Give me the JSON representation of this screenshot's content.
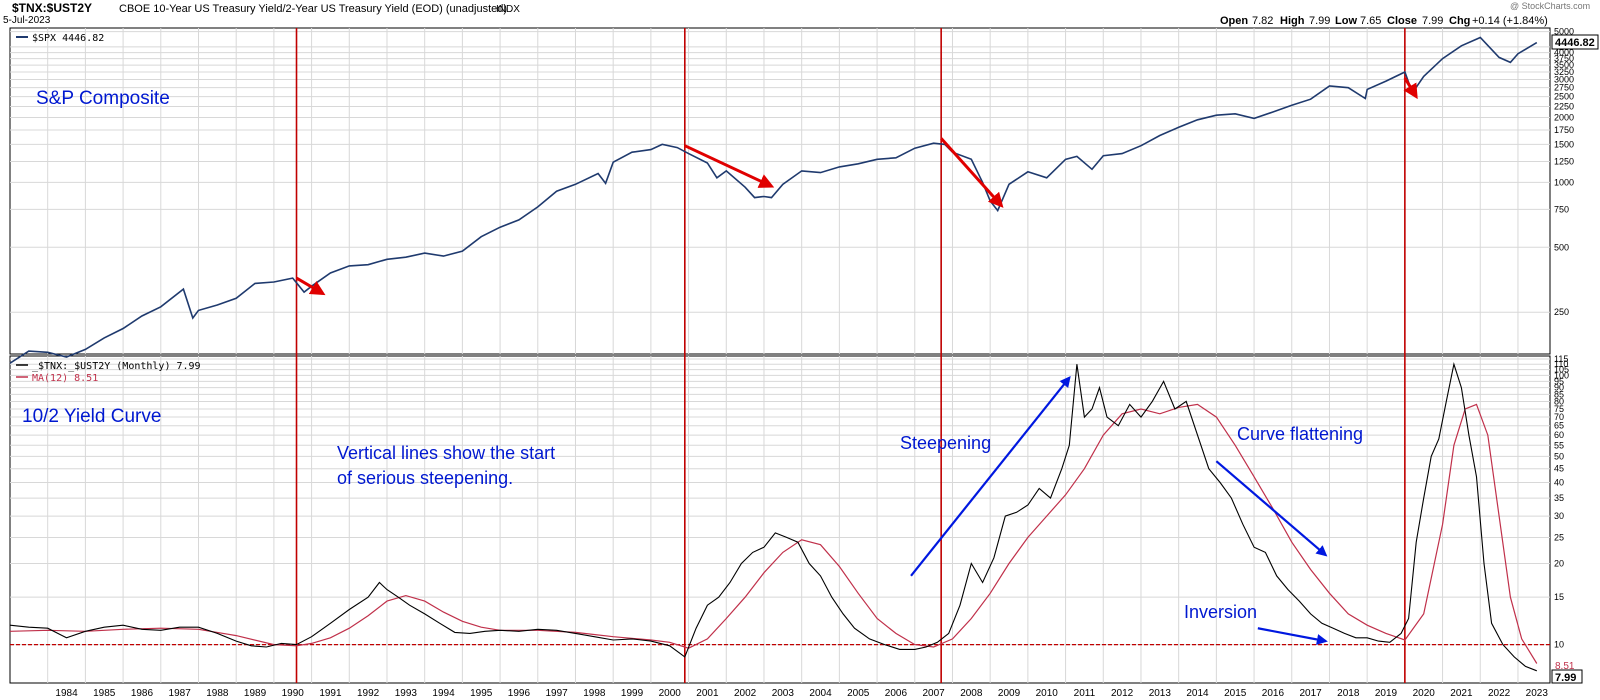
{
  "header": {
    "symbol": "$TNX:$UST2Y",
    "description": "CBOE 10-Year US Treasury Yield/2-Year US Treasury Yield (EOD) (unadjusted)",
    "exchange": "INDX",
    "date": "5-Jul-2023",
    "watermark": "@ StockCharts.com",
    "open_label": "Open",
    "open": "7.82",
    "high_label": "High",
    "high": "7.99",
    "low_label": "Low",
    "low": "7.65",
    "close_label": "Close",
    "close": "7.99",
    "chg_label": "Chg",
    "chg": "+0.14 (+1.84%)"
  },
  "colors": {
    "spx_line": "#1f3a6e",
    "ratio_line": "#000000",
    "ma_line": "#c0304a",
    "vertical_lines": "#c00000",
    "red_arrows": "#e00000",
    "blue_arrows": "#0018e0",
    "annotation_text": "#0018d0",
    "grid": "#d8d8d8"
  },
  "chart_data": [
    {
      "type": "line",
      "panel": "top",
      "legend": "$SPX 4446.82",
      "last_value_label": "4446.82",
      "yscale": "log",
      "ylim": [
        160,
        5200
      ],
      "yticks": [
        250,
        500,
        750,
        1000,
        1250,
        1500,
        1750,
        2000,
        2250,
        2500,
        2750,
        3000,
        3250,
        3500,
        3750,
        4000,
        4250,
        5000
      ],
      "series": [
        {
          "name": "$SPX",
          "x": [
            1983.0,
            1983.5,
            1984.0,
            1984.5,
            1985.0,
            1985.5,
            1986.0,
            1986.5,
            1987.0,
            1987.6,
            1987.85,
            1988.0,
            1988.5,
            1989.0,
            1989.5,
            1990.0,
            1990.5,
            1990.8,
            1991.0,
            1991.5,
            1992.0,
            1992.5,
            1993.0,
            1993.5,
            1994.0,
            1994.5,
            1995.0,
            1995.5,
            1996.0,
            1996.5,
            1997.0,
            1997.5,
            1998.0,
            1998.6,
            1998.8,
            1999.0,
            1999.5,
            2000.0,
            2000.3,
            2000.7,
            2001.0,
            2001.5,
            2001.75,
            2002.0,
            2002.5,
            2002.75,
            2003.0,
            2003.2,
            2003.5,
            2004.0,
            2004.5,
            2005.0,
            2005.5,
            2006.0,
            2006.5,
            2007.0,
            2007.5,
            2007.8,
            2008.0,
            2008.5,
            2008.8,
            2009.0,
            2009.2,
            2009.5,
            2010.0,
            2010.5,
            2011.0,
            2011.3,
            2011.7,
            2012.0,
            2012.5,
            2013.0,
            2013.5,
            2014.0,
            2014.5,
            2015.0,
            2015.5,
            2016.0,
            2016.5,
            2017.0,
            2017.5,
            2018.0,
            2018.5,
            2018.95,
            2019.0,
            2019.5,
            2020.0,
            2020.2,
            2020.5,
            2021.0,
            2021.5,
            2022.0,
            2022.5,
            2022.8,
            2023.0,
            2023.5
          ],
          "values": [
            145,
            165,
            163,
            155,
            168,
            190,
            210,
            240,
            265,
            320,
            235,
            255,
            270,
            290,
            340,
            345,
            360,
            310,
            330,
            380,
            410,
            415,
            440,
            450,
            470,
            455,
            480,
            560,
            620,
            670,
            770,
            910,
            980,
            1100,
            990,
            1240,
            1380,
            1420,
            1500,
            1450,
            1360,
            1230,
            1050,
            1130,
            950,
            850,
            860,
            850,
            980,
            1130,
            1110,
            1180,
            1220,
            1280,
            1300,
            1440,
            1520,
            1500,
            1380,
            1280,
            1000,
            820,
            740,
            980,
            1120,
            1050,
            1280,
            1320,
            1150,
            1330,
            1360,
            1480,
            1650,
            1800,
            1950,
            2050,
            2080,
            1980,
            2120,
            2280,
            2430,
            2800,
            2750,
            2450,
            2700,
            2950,
            3250,
            2600,
            3100,
            3750,
            4300,
            4700,
            3800,
            3600,
            3950,
            4450
          ]
        }
      ],
      "annotations": [
        "S&P Composite"
      ]
    },
    {
      "type": "line",
      "panel": "bottom",
      "legend_main": "_$TNX:_$UST2Y (Monthly) 7.99",
      "legend_ma": "MA(12) 8.51",
      "last_value_label": "7.99",
      "ma_value_label": "8.51",
      "yscale": "log",
      "ylim": [
        7.2,
        118
      ],
      "yticks": [
        10,
        15,
        20,
        25,
        30,
        35,
        40,
        45,
        50,
        55,
        60,
        65,
        70,
        75,
        80,
        85,
        90,
        95,
        100,
        105,
        110,
        115
      ],
      "reference_line": 10,
      "xticks": [
        "1984",
        "1985",
        "1986",
        "1987",
        "1988",
        "1989",
        "1990",
        "1991",
        "1992",
        "1993",
        "1994",
        "1995",
        "1996",
        "1997",
        "1998",
        "1999",
        "2000",
        "2001",
        "2002",
        "2003",
        "2004",
        "2005",
        "2006",
        "2007",
        "2008",
        "2009",
        "2010",
        "2011",
        "2012",
        "2013",
        "2014",
        "2015",
        "2016",
        "2017",
        "2018",
        "2019",
        "2020",
        "2021",
        "2022",
        "2023"
      ],
      "vertical_lines": [
        1990.6,
        2000.9,
        2007.7,
        2020.0
      ],
      "series": [
        {
          "name": "_$TNX:_$UST2Y",
          "x": [
            1983.0,
            1983.5,
            1984.0,
            1984.5,
            1985.0,
            1985.5,
            1986.0,
            1986.5,
            1987.0,
            1987.5,
            1988.0,
            1988.5,
            1989.0,
            1989.4,
            1989.8,
            1990.2,
            1990.6,
            1991.0,
            1991.5,
            1992.0,
            1992.5,
            1992.8,
            1993.0,
            1993.3,
            1993.6,
            1994.0,
            1994.4,
            1994.8,
            1995.2,
            1995.6,
            1996.0,
            1996.5,
            1997.0,
            1997.5,
            1998.0,
            1998.5,
            1999.0,
            1999.5,
            2000.0,
            2000.5,
            2000.9,
            2001.2,
            2001.5,
            2001.8,
            2002.1,
            2002.4,
            2002.7,
            2003.0,
            2003.3,
            2003.6,
            2003.9,
            2004.2,
            2004.5,
            2004.8,
            2005.1,
            2005.4,
            2005.8,
            2006.2,
            2006.6,
            2007.0,
            2007.3,
            2007.6,
            2007.9,
            2008.2,
            2008.5,
            2008.8,
            2009.1,
            2009.4,
            2009.7,
            2010.0,
            2010.3,
            2010.6,
            2010.9,
            2011.1,
            2011.3,
            2011.5,
            2011.7,
            2011.9,
            2012.1,
            2012.4,
            2012.7,
            2013.0,
            2013.3,
            2013.6,
            2013.9,
            2014.2,
            2014.5,
            2014.8,
            2015.1,
            2015.4,
            2015.7,
            2016.0,
            2016.3,
            2016.6,
            2016.9,
            2017.2,
            2017.5,
            2017.8,
            2018.1,
            2018.4,
            2018.7,
            2019.0,
            2019.3,
            2019.6,
            2019.9,
            2020.1,
            2020.3,
            2020.5,
            2020.7,
            2020.9,
            2021.1,
            2021.3,
            2021.5,
            2021.7,
            2021.9,
            2022.1,
            2022.3,
            2022.6,
            2022.9,
            2023.2,
            2023.5
          ],
          "values": [
            11.8,
            11.6,
            11.5,
            10.6,
            11.2,
            11.6,
            11.8,
            11.4,
            11.3,
            11.6,
            11.6,
            11.0,
            10.3,
            9.9,
            9.8,
            10.1,
            10.0,
            10.7,
            12.0,
            13.5,
            15.0,
            17.0,
            16.0,
            15.0,
            14.0,
            13.0,
            12.0,
            11.1,
            11.0,
            11.2,
            11.3,
            11.2,
            11.4,
            11.3,
            11.0,
            10.7,
            10.4,
            10.5,
            10.3,
            9.9,
            9.0,
            11.5,
            14.0,
            15.0,
            17.0,
            20.0,
            22.0,
            23.0,
            26.0,
            25.0,
            24.0,
            20.0,
            18.0,
            15.0,
            13.0,
            11.5,
            10.5,
            10.0,
            9.6,
            9.6,
            9.8,
            10.2,
            11.0,
            14.0,
            20.0,
            17.0,
            21.0,
            30.0,
            31.0,
            33.0,
            38.0,
            35.0,
            45.0,
            55.0,
            110.0,
            70.0,
            75.0,
            90.0,
            70.0,
            65.0,
            78.0,
            70.0,
            80.0,
            95.0,
            75.0,
            80.0,
            60.0,
            45.0,
            40.0,
            35.0,
            28.0,
            23.0,
            22.0,
            18.0,
            16.0,
            14.5,
            13.0,
            12.0,
            11.5,
            11.0,
            10.6,
            10.6,
            10.3,
            10.2,
            11.0,
            12.5,
            24.0,
            35.0,
            50.0,
            58.0,
            80.0,
            110.0,
            90.0,
            60.0,
            42.0,
            20.0,
            12.0,
            10.0,
            9.0,
            8.3,
            7.99
          ]
        },
        {
          "name": "MA(12)",
          "x": [
            1983.0,
            1984.0,
            1985.0,
            1986.0,
            1987.0,
            1988.0,
            1989.0,
            1990.0,
            1990.6,
            1991.0,
            1991.5,
            1992.0,
            1992.5,
            1993.0,
            1993.5,
            1994.0,
            1994.5,
            1995.0,
            1995.5,
            1996.0,
            1997.0,
            1998.0,
            1999.0,
            2000.0,
            2000.5,
            2001.0,
            2001.5,
            2002.0,
            2002.5,
            2003.0,
            2003.5,
            2004.0,
            2004.5,
            2005.0,
            2005.5,
            2006.0,
            2006.5,
            2007.0,
            2007.5,
            2008.0,
            2008.5,
            2009.0,
            2009.5,
            2010.0,
            2010.5,
            2011.0,
            2011.5,
            2012.0,
            2012.5,
            2013.0,
            2013.5,
            2014.0,
            2014.5,
            2015.0,
            2015.5,
            2016.0,
            2016.5,
            2017.0,
            2017.5,
            2018.0,
            2018.5,
            2019.0,
            2019.5,
            2020.0,
            2020.5,
            2021.0,
            2021.3,
            2021.6,
            2021.9,
            2022.2,
            2022.5,
            2022.8,
            2023.1,
            2023.5
          ],
          "values": [
            11.2,
            11.3,
            11.2,
            11.4,
            11.5,
            11.4,
            10.8,
            10.0,
            9.9,
            10.1,
            10.6,
            11.5,
            12.8,
            14.5,
            15.2,
            14.5,
            13.2,
            12.2,
            11.6,
            11.3,
            11.3,
            11.1,
            10.7,
            10.4,
            10.2,
            9.7,
            10.5,
            12.5,
            15.0,
            18.5,
            22.0,
            24.5,
            23.5,
            19.5,
            15.5,
            12.5,
            11.0,
            10.0,
            9.8,
            10.5,
            12.5,
            15.5,
            20.0,
            25.0,
            30.0,
            36.0,
            45.0,
            60.0,
            72.0,
            75.0,
            72.0,
            76.0,
            78.0,
            70.0,
            55.0,
            42.0,
            32.0,
            24.0,
            19.0,
            15.5,
            13.0,
            11.8,
            11.0,
            10.4,
            13.0,
            28.0,
            55.0,
            75.0,
            78.0,
            60.0,
            30.0,
            15.0,
            10.5,
            8.51
          ]
        }
      ],
      "annotations": {
        "panel_title": "10/2 Yield Curve",
        "note_line1": "Vertical lines show the start",
        "note_line2": "of serious steepening.",
        "steepening": "Steepening",
        "flattening": "Curve flattening",
        "inversion": "Inversion"
      }
    }
  ]
}
